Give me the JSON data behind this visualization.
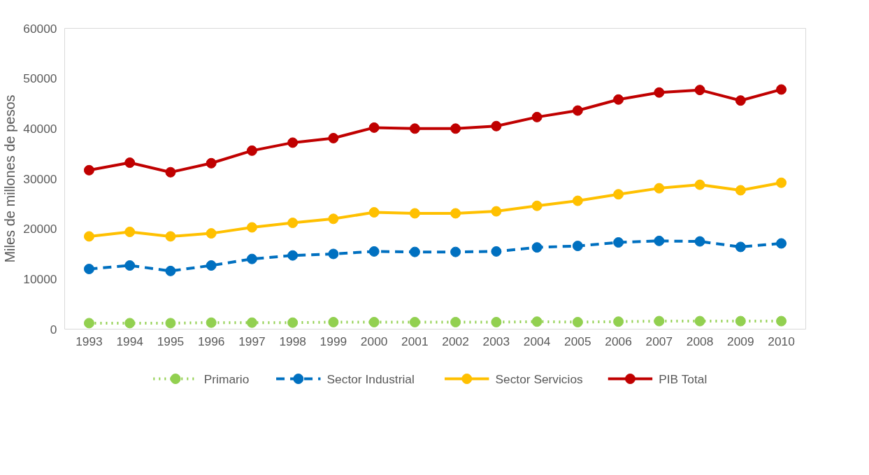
{
  "chart_data": {
    "type": "line",
    "ylabel": "Miles de millones de pesos",
    "categories": [
      "1993",
      "1994",
      "1995",
      "1996",
      "1997",
      "1998",
      "1999",
      "2000",
      "2001",
      "2002",
      "2003",
      "2004",
      "2005",
      "2006",
      "2007",
      "2008",
      "2009",
      "2010"
    ],
    "ylim": [
      0,
      60000
    ],
    "yticks": [
      0,
      10000,
      20000,
      30000,
      40000,
      50000,
      60000
    ],
    "grid": false,
    "legend": "bottom",
    "marker": "circle",
    "series": [
      {
        "name": "Primario",
        "color": "#92d050",
        "line_style": "dotted",
        "values": [
          1200,
          1200,
          1200,
          1300,
          1300,
          1300,
          1400,
          1400,
          1400,
          1400,
          1400,
          1500,
          1400,
          1500,
          1600,
          1600,
          1600,
          1600
        ]
      },
      {
        "name": "Sector Industrial",
        "color": "#0070c0",
        "line_style": "dashed",
        "values": [
          12000,
          12700,
          11600,
          12700,
          14000,
          14700,
          15000,
          15500,
          15400,
          15400,
          15500,
          16300,
          16600,
          17300,
          17600,
          17500,
          16400,
          17100
        ]
      },
      {
        "name": "Sector Servicios",
        "color": "#ffc000",
        "line_style": "solid",
        "values": [
          18500,
          19400,
          18500,
          19100,
          20300,
          21200,
          22000,
          23300,
          23100,
          23100,
          23500,
          24600,
          25600,
          26900,
          28100,
          28800,
          27700,
          29200
        ]
      },
      {
        "name": "PIB Total",
        "color": "#c00000",
        "line_style": "solid",
        "values": [
          31700,
          33200,
          31300,
          33100,
          35600,
          37200,
          38100,
          40200,
          40000,
          40000,
          40500,
          42300,
          43600,
          45800,
          47200,
          47700,
          45600,
          47800
        ]
      }
    ]
  }
}
